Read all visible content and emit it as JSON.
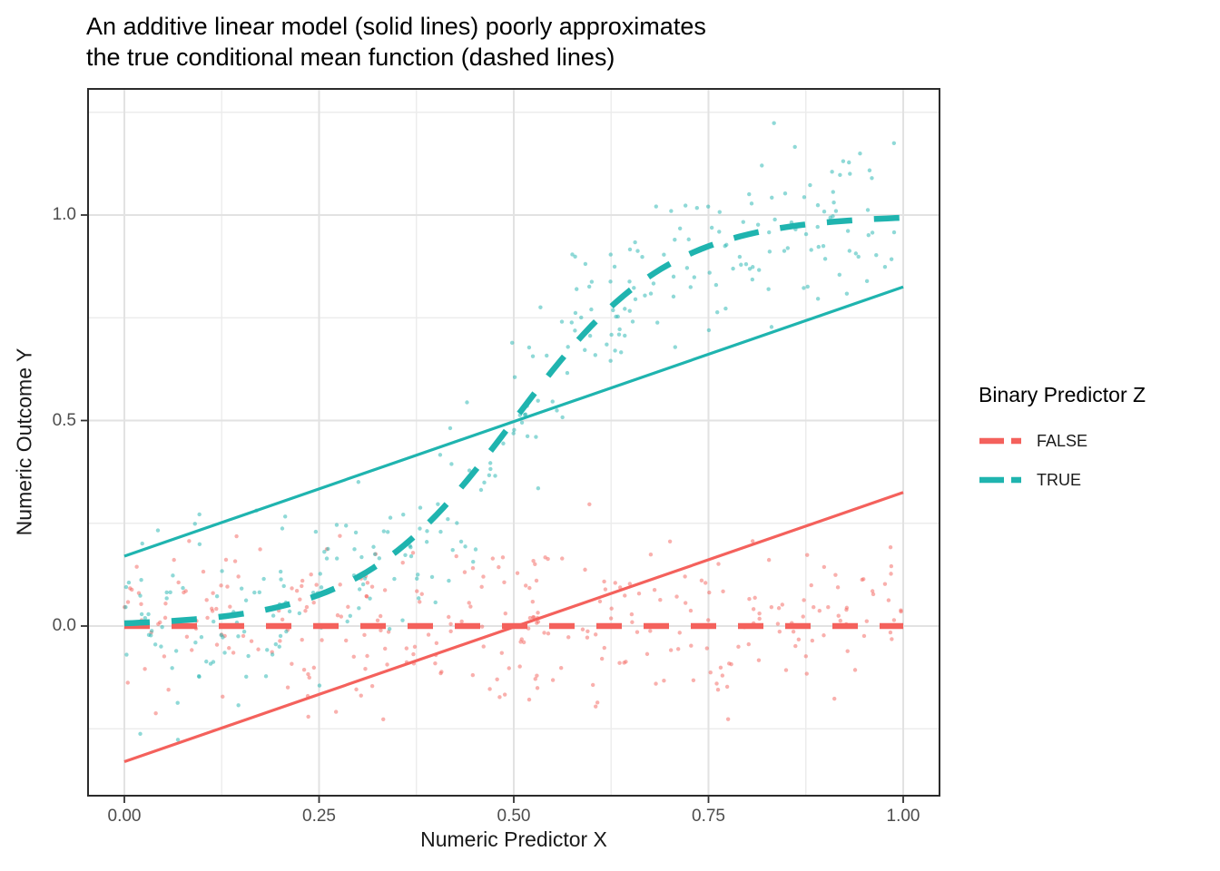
{
  "chart_data": {
    "type": "scatter",
    "title": "An additive linear model (solid lines) poorly approximates the true conditional mean function (dashed lines)",
    "title_lines": [
      "An additive linear model (solid lines) poorly approximates",
      "the true conditional mean function (dashed lines)"
    ],
    "xlabel": "Numeric Predictor X",
    "ylabel": "Numeric Outcome Y",
    "x_axis": {
      "ticks": [
        0,
        0.25,
        0.5,
        0.75,
        1.0
      ],
      "tick_labels": [
        "0.00",
        "0.25",
        "0.50",
        "0.75",
        "1.00"
      ],
      "minor_breaks": [
        0.125,
        0.375,
        0.625,
        0.875
      ],
      "range": [
        -0.047,
        1.047
      ]
    },
    "y_axis": {
      "ticks": [
        0,
        0.5,
        1.0
      ],
      "tick_labels": [
        "0.0",
        "0.5",
        "1.0"
      ],
      "minor_breaks": [
        -0.25,
        0.25,
        0.75,
        1.25
      ],
      "range": [
        -0.413,
        1.307
      ]
    },
    "grid": true,
    "legend": {
      "title": "Binary Predictor Z",
      "position": "right",
      "entries": [
        {
          "label": "FALSE",
          "color": "#F4615C"
        },
        {
          "label": "TRUE",
          "color": "#1FB4AF"
        }
      ]
    },
    "groups": [
      {
        "name": "FALSE",
        "color": "#F4615C",
        "fitted_line": {
          "style": "solid",
          "points": [
            [
              0,
              -0.33
            ],
            [
              1,
              0.325
            ]
          ]
        },
        "true_mean": {
          "style": "dashed",
          "kind": "constant",
          "value": 0,
          "x_range": [
            0,
            1
          ]
        },
        "scatter": {
          "n": 300,
          "mean": "constant 0",
          "noise_sd": 0.1
        }
      },
      {
        "name": "TRUE",
        "color": "#1FB4AF",
        "fitted_line": {
          "style": "solid",
          "points": [
            [
              0,
              0.17
            ],
            [
              1,
              0.825
            ]
          ]
        },
        "true_mean": {
          "style": "dashed",
          "kind": "logistic",
          "k": 10,
          "x0": 0.5,
          "x_range": [
            0,
            1
          ]
        },
        "scatter": {
          "n": 300,
          "mean": "logistic(10*(x-0.5))",
          "noise_sd": 0.1
        }
      }
    ],
    "scatter_style": {
      "radius": 2.2,
      "opacity": 0.5,
      "seed": 20
    },
    "line_widths": {
      "solid": 3.2,
      "dashed": 6.5,
      "dash_pattern": [
        28,
        24
      ]
    },
    "panel_style": {
      "background": "#FFFFFF",
      "border_color": "#2b2b2b",
      "major_grid_color": "#E2E2E2",
      "minor_grid_color": "#ECECEC",
      "tick_color": "#333333"
    }
  }
}
